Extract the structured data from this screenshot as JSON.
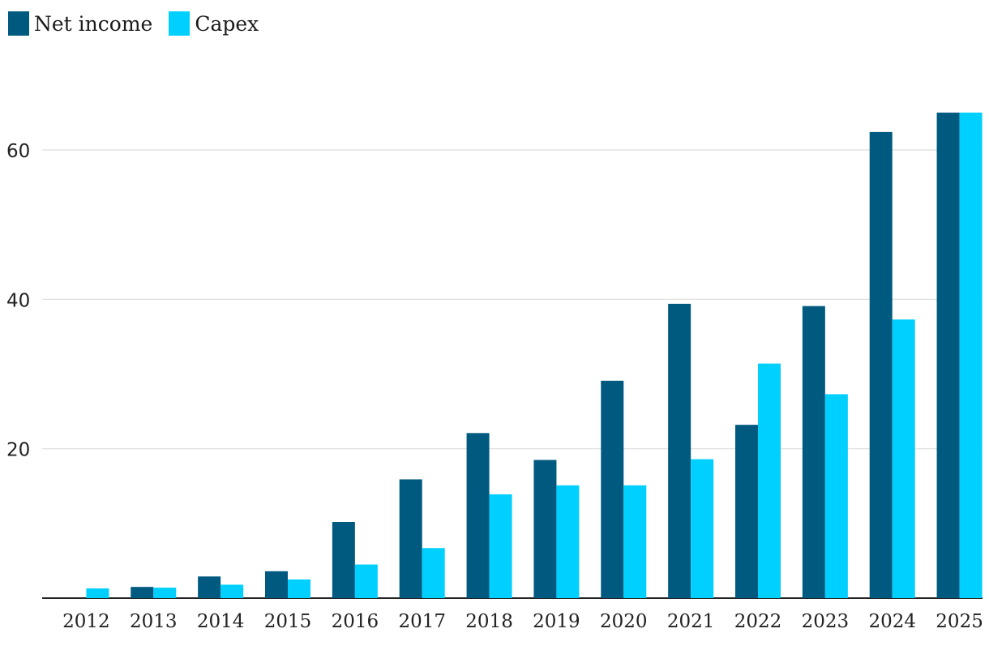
{
  "chart_data": {
    "type": "bar",
    "title": "",
    "xlabel": "",
    "ylabel": "",
    "categories": [
      "2012",
      "2013",
      "2014",
      "2015",
      "2016",
      "2017",
      "2018",
      "2019",
      "2020",
      "2021",
      "2022",
      "2023",
      "2024",
      "2025"
    ],
    "series": [
      {
        "name": "Net income",
        "color": "#005a80",
        "values": [
          0,
          1.5,
          2.9,
          3.6,
          10.2,
          15.9,
          22.1,
          18.5,
          29.1,
          39.4,
          23.2,
          39.1,
          62.4,
          65.0
        ]
      },
      {
        "name": "Capex",
        "color": "#00d0ff",
        "values": [
          1.3,
          1.4,
          1.8,
          2.5,
          4.5,
          6.7,
          13.9,
          15.1,
          15.1,
          18.6,
          31.4,
          27.3,
          37.3,
          65.0
        ]
      }
    ],
    "ylim": [
      0,
      70
    ],
    "yticks": [
      20,
      40,
      60
    ],
    "grid": true,
    "legend_position": "top-left"
  }
}
